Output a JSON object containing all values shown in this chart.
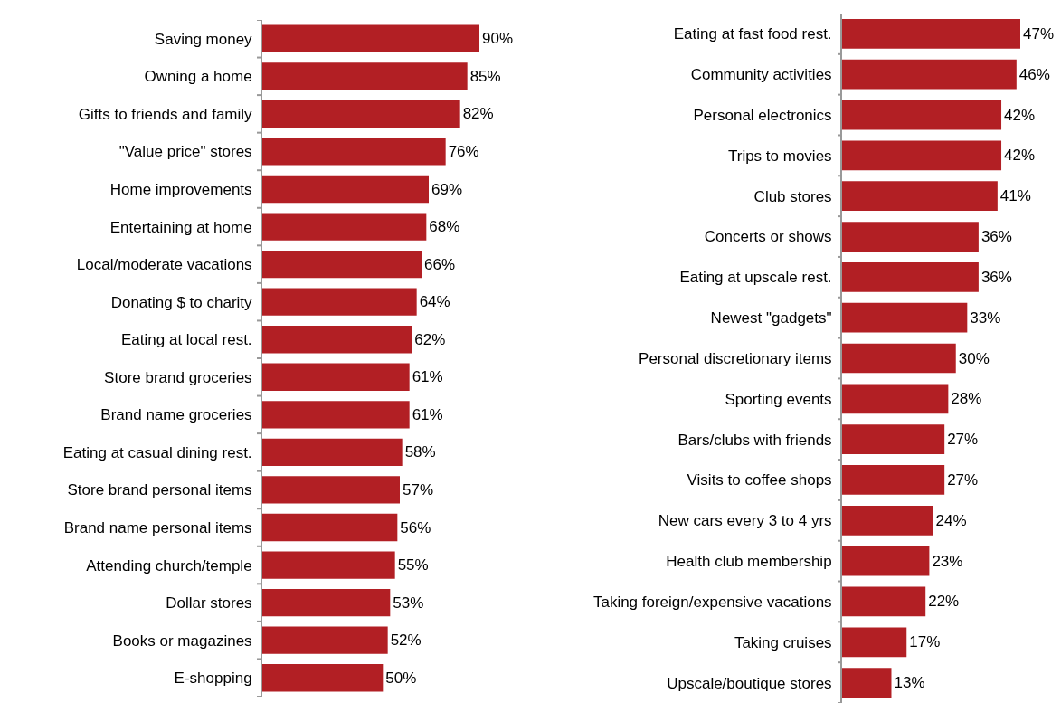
{
  "chart_data": [
    {
      "type": "bar",
      "orientation": "horizontal",
      "categories": [
        "Saving money",
        "Owning a home",
        "Gifts to friends and family",
        "\"Value price\" stores",
        "Home improvements",
        "Entertaining at home",
        "Local/moderate vacations",
        "Donating $ to charity",
        "Eating at local rest.",
        "Store brand groceries",
        "Brand name groceries",
        "Eating at casual dining rest.",
        "Store brand personal items",
        "Brand name personal items",
        "Attending church/temple",
        "Dollar stores",
        "Books or magazines",
        "E-shopping"
      ],
      "values": [
        90,
        85,
        82,
        76,
        69,
        68,
        66,
        64,
        62,
        61,
        61,
        58,
        57,
        56,
        55,
        53,
        52,
        50
      ],
      "value_labels": [
        "90%",
        "85%",
        "82%",
        "76%",
        "69%",
        "68%",
        "66%",
        "64%",
        "62%",
        "61%",
        "61%",
        "58%",
        "57%",
        "56%",
        "55%",
        "53%",
        "52%",
        "50%"
      ],
      "color": "#b21f24",
      "xlim": [
        0,
        90
      ],
      "tick_labels": "y",
      "grid": false,
      "legend": false
    },
    {
      "type": "bar",
      "orientation": "horizontal",
      "categories": [
        "Eating at fast food rest.",
        "Community activities",
        "Personal electronics",
        "Trips to movies",
        "Club stores",
        "Concerts or shows",
        "Eating at upscale rest.",
        "Newest \"gadgets\"",
        "Personal discretionary items",
        "Sporting events",
        "Bars/clubs with friends",
        "Visits to coffee shops",
        "New cars every 3 to 4 yrs",
        "Health club membership",
        "Taking foreign/expensive vacations",
        "Taking cruises",
        "Upscale/boutique stores"
      ],
      "values": [
        47,
        46,
        42,
        42,
        41,
        36,
        36,
        33,
        30,
        28,
        27,
        27,
        24,
        23,
        22,
        17,
        13
      ],
      "value_labels": [
        "47%",
        "46%",
        "42%",
        "42%",
        "41%",
        "36%",
        "36%",
        "33%",
        "30%",
        "28%",
        "27%",
        "27%",
        "24%",
        "23%",
        "22%",
        "17%",
        "13%"
      ],
      "color": "#b21f24",
      "xlim": [
        0,
        47
      ],
      "tick_labels": "y",
      "grid": false,
      "legend": false
    }
  ]
}
